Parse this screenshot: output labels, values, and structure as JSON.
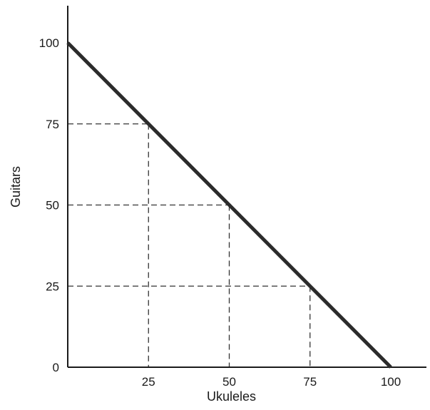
{
  "chart_data": {
    "type": "line",
    "title": "",
    "xlabel": "Ukuleles",
    "ylabel": "Guitars",
    "xlim": [
      0,
      100
    ],
    "ylim": [
      0,
      100
    ],
    "x_ticks": [
      "25",
      "50",
      "75",
      "100"
    ],
    "y_ticks": [
      "0",
      "25",
      "50",
      "75",
      "100"
    ],
    "series": [
      {
        "x": [
          0,
          100
        ],
        "y": [
          100,
          0
        ]
      }
    ],
    "reference_points": [
      {
        "x": 25,
        "y": 75
      },
      {
        "x": 50,
        "y": 50
      },
      {
        "x": 75,
        "y": 25
      }
    ],
    "grid": false,
    "colors": {
      "axis": "#1a1a1a",
      "line": "#2b2b2b",
      "dashed": "#333333"
    }
  }
}
